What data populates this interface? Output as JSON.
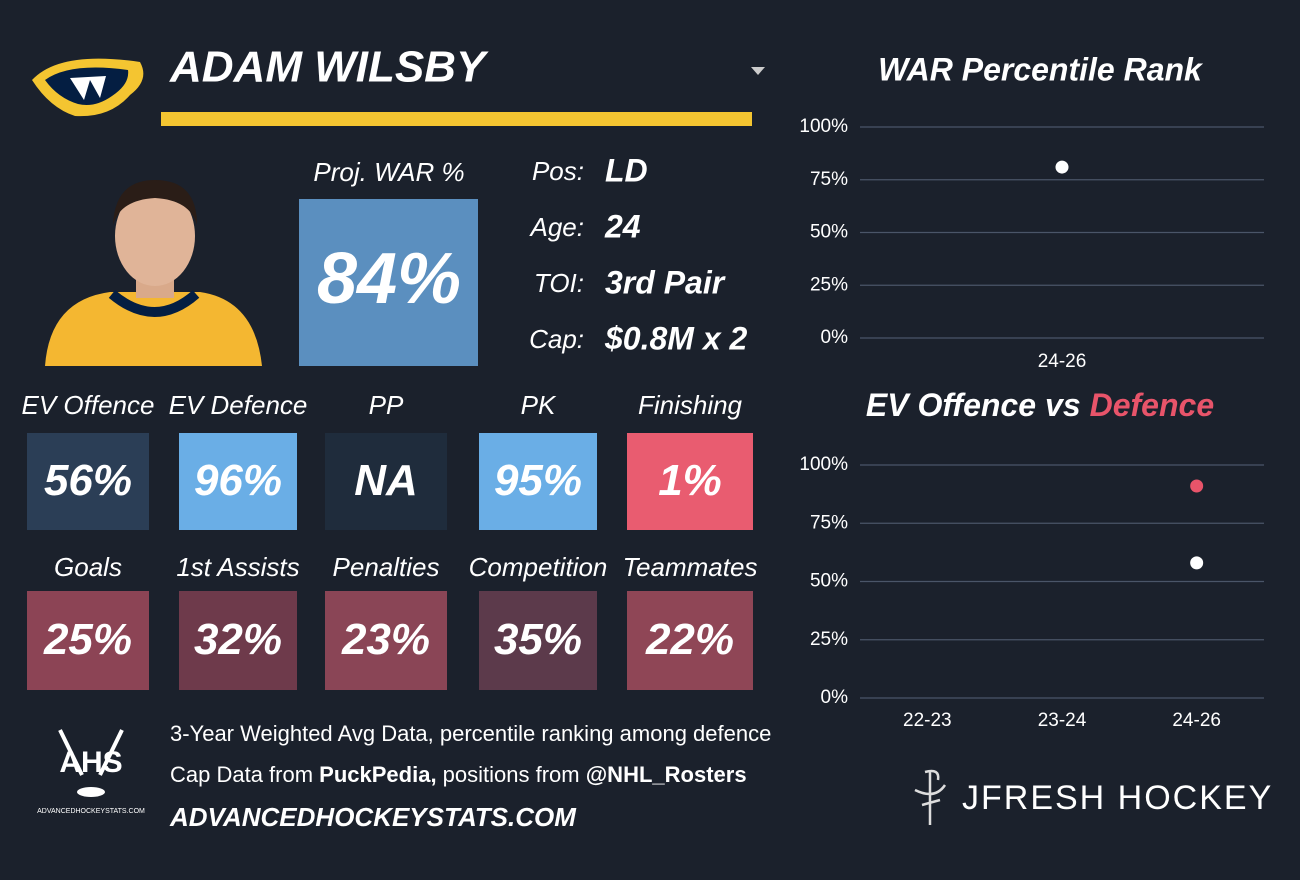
{
  "header": {
    "name": "ADAM WILSBY"
  },
  "player": {
    "proj_war_label": "Proj. WAR %",
    "proj_war": "84%",
    "info": [
      {
        "label": "Pos:",
        "value": "LD"
      },
      {
        "label": "Age:",
        "value": "24"
      },
      {
        "label": "TOI:",
        "value": "3rd Pair"
      },
      {
        "label": "Cap:",
        "value": "$0.8M x 2"
      }
    ]
  },
  "tiles": [
    {
      "label": "EV Offence",
      "value": "56%",
      "color": "#2b3e56"
    },
    {
      "label": "EV Defence",
      "value": "96%",
      "color": "#6aaee6"
    },
    {
      "label": "PP",
      "value": "NA",
      "color": "#1f2c3c"
    },
    {
      "label": "PK",
      "value": "95%",
      "color": "#6aaee6"
    },
    {
      "label": "Finishing",
      "value": "1%",
      "color": "#e95c70"
    },
    {
      "label": "Goals",
      "value": "25%",
      "color": "#8c4455"
    },
    {
      "label": "1st Assists",
      "value": "32%",
      "color": "#6e3a4b"
    },
    {
      "label": "Penalties",
      "value": "23%",
      "color": "#8a4556"
    },
    {
      "label": "Competition",
      "value": "35%",
      "color": "#5c3a4b"
    },
    {
      "label": "Teammates",
      "value": "22%",
      "color": "#8f4656"
    }
  ],
  "footer": {
    "logo": "AHS",
    "logo_site": "ADVANCEDHOCKEYSTATS.COM",
    "line1": "3-Year Weighted Avg Data, percentile ranking among defence",
    "line2": [
      "Cap Data from ",
      "PuckPedia,",
      " positions from ",
      "@NHL_Rosters"
    ],
    "line3": "ADVANCEDHOCKEYSTATS.COM",
    "brand": "JFRESH HOCKEY"
  },
  "chart_data": [
    {
      "type": "scatter",
      "title": "WAR Percentile Rank",
      "categories": [
        "24-26"
      ],
      "series": [
        {
          "color": "#ffffff",
          "values": [
            81
          ]
        }
      ],
      "ylim": [
        0,
        100
      ],
      "yticks": [
        {
          "value": 0,
          "label": "0%"
        },
        {
          "value": 25,
          "label": "25%"
        },
        {
          "value": 50,
          "label": "50%"
        },
        {
          "value": 75,
          "label": "75%"
        },
        {
          "value": 100,
          "label": "100%"
        }
      ],
      "grid": true
    },
    {
      "type": "scatter",
      "title_joiner": "vs",
      "categories": [
        "22-23",
        "23-24",
        "24-26"
      ],
      "series": [
        {
          "name": "EV Offence",
          "color": "#ffffff",
          "values": [
            null,
            null,
            58
          ]
        },
        {
          "name": "Defence",
          "color": "#e8546a",
          "values": [
            null,
            null,
            91
          ]
        }
      ],
      "ylim": [
        0,
        100
      ],
      "yticks": [
        {
          "value": 0,
          "label": "0%"
        },
        {
          "value": 25,
          "label": "25%"
        },
        {
          "value": 50,
          "label": "50%"
        },
        {
          "value": 75,
          "label": "75%"
        },
        {
          "value": 100,
          "label": "100%"
        }
      ],
      "grid": true
    }
  ]
}
